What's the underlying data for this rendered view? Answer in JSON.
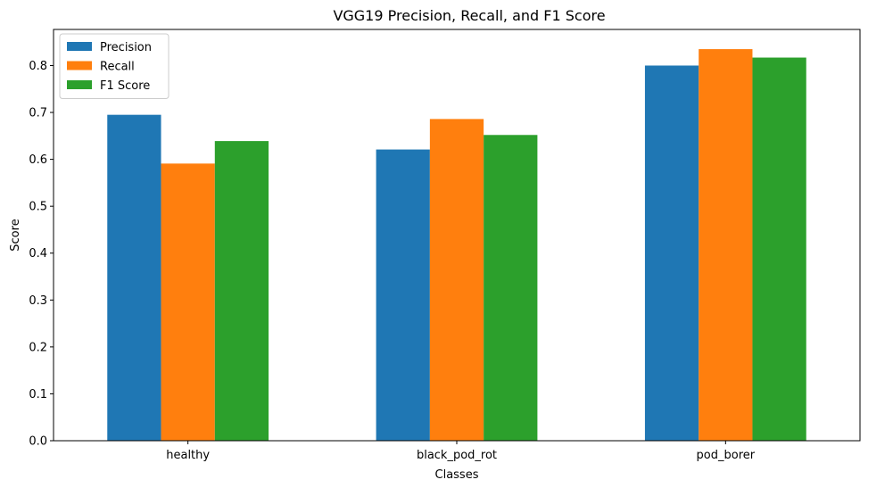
{
  "chart_data": {
    "type": "bar",
    "title": "VGG19 Precision, Recall, and F1 Score",
    "xlabel": "Classes",
    "ylabel": "Score",
    "categories": [
      "healthy",
      "black_pod_rot",
      "pod_borer"
    ],
    "series": [
      {
        "name": "Precision",
        "color": "#1f77b4",
        "values": [
          0.695,
          0.621,
          0.8
        ]
      },
      {
        "name": "Recall",
        "color": "#ff7f0e",
        "values": [
          0.591,
          0.686,
          0.835
        ]
      },
      {
        "name": "F1 Score",
        "color": "#2ca02c",
        "values": [
          0.639,
          0.652,
          0.817
        ]
      }
    ],
    "ylim": [
      0,
      0.877
    ],
    "yticks": [
      0.0,
      0.1,
      0.2,
      0.3,
      0.4,
      0.5,
      0.6,
      0.7,
      0.8
    ],
    "ytick_labels": [
      "0.0",
      "0.1",
      "0.2",
      "0.3",
      "0.4",
      "0.5",
      "0.6",
      "0.7",
      "0.8"
    ],
    "grid": false,
    "legend_position": "top-left"
  }
}
